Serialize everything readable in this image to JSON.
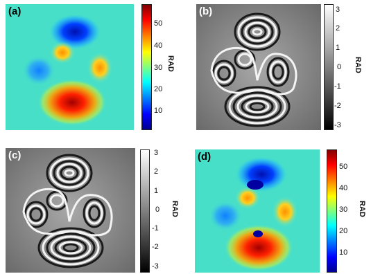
{
  "figure": {
    "panels": [
      {
        "id": "a",
        "label": "(a)",
        "kind": "unwrapped-phase"
      },
      {
        "id": "b",
        "label": "(b)",
        "kind": "wrapped-phase"
      },
      {
        "id": "c",
        "label": "(c)",
        "kind": "wrapped-phase"
      },
      {
        "id": "d",
        "label": "(d)",
        "kind": "unwrapped-phase-with-defects"
      }
    ]
  },
  "chart_data": [
    {
      "type": "heatmap",
      "panel": "a",
      "colormap": "jet",
      "colorbar": {
        "label": "RAD",
        "ticks": [
          10,
          20,
          30,
          40,
          50
        ],
        "range": [
          0,
          57
        ]
      }
    },
    {
      "type": "heatmap",
      "panel": "b",
      "colormap": "gray",
      "colorbar": {
        "label": "RAD",
        "ticks": [
          -3,
          -2,
          -1,
          0,
          1,
          2,
          3
        ],
        "range": [
          -3.14,
          3.14
        ]
      }
    },
    {
      "type": "heatmap",
      "panel": "c",
      "colormap": "gray",
      "colorbar": {
        "label": "RAD",
        "ticks": [
          -3,
          -2,
          -1,
          0,
          1,
          2,
          3
        ],
        "range": [
          -3.14,
          3.14
        ]
      }
    },
    {
      "type": "heatmap",
      "panel": "d",
      "colormap": "jet",
      "colorbar": {
        "label": "RAD",
        "ticks": [
          10,
          20,
          30,
          40,
          50
        ],
        "range": [
          0,
          57
        ]
      }
    }
  ]
}
